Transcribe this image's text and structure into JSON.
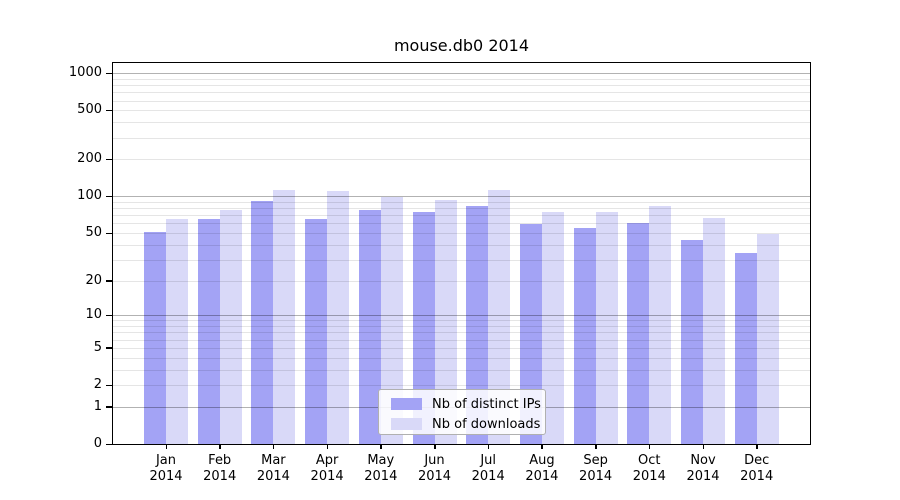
{
  "title": "mouse.db0 2014",
  "chart_data": {
    "type": "bar",
    "title": "mouse.db0 2014",
    "categories": [
      "Jan",
      "Feb",
      "Mar",
      "Apr",
      "May",
      "Jun",
      "Jul",
      "Aug",
      "Sep",
      "Oct",
      "Nov",
      "Dec"
    ],
    "x_tick_second_line": "2014",
    "series": [
      {
        "name": "Nb of distinct IPs",
        "color": "#a3a3f5",
        "values": [
          51,
          65,
          92,
          65,
          77,
          75,
          84,
          59,
          55,
          60,
          44,
          34
        ]
      },
      {
        "name": "Nb of downloads",
        "color": "#d9d9f8",
        "values": [
          65,
          78,
          113,
          111,
          99,
          93,
          113,
          75,
          74,
          83,
          67,
          49
        ]
      }
    ],
    "y_ticks": [
      0,
      1,
      2,
      5,
      10,
      20,
      50,
      100,
      200,
      500,
      1000
    ],
    "y_major_gridlines": [
      1,
      10,
      100,
      1000
    ],
    "y_scale": "log10(value+1)",
    "ylim": [
      0,
      1216
    ],
    "grid": true,
    "legend_position": "lower-center",
    "colors": {
      "major_grid": "rgba(0,0,0,0.30)",
      "minor_grid": "rgba(0,0,0,0.10)",
      "axis": "#000000",
      "legend_border": "#b0b0b0"
    }
  }
}
